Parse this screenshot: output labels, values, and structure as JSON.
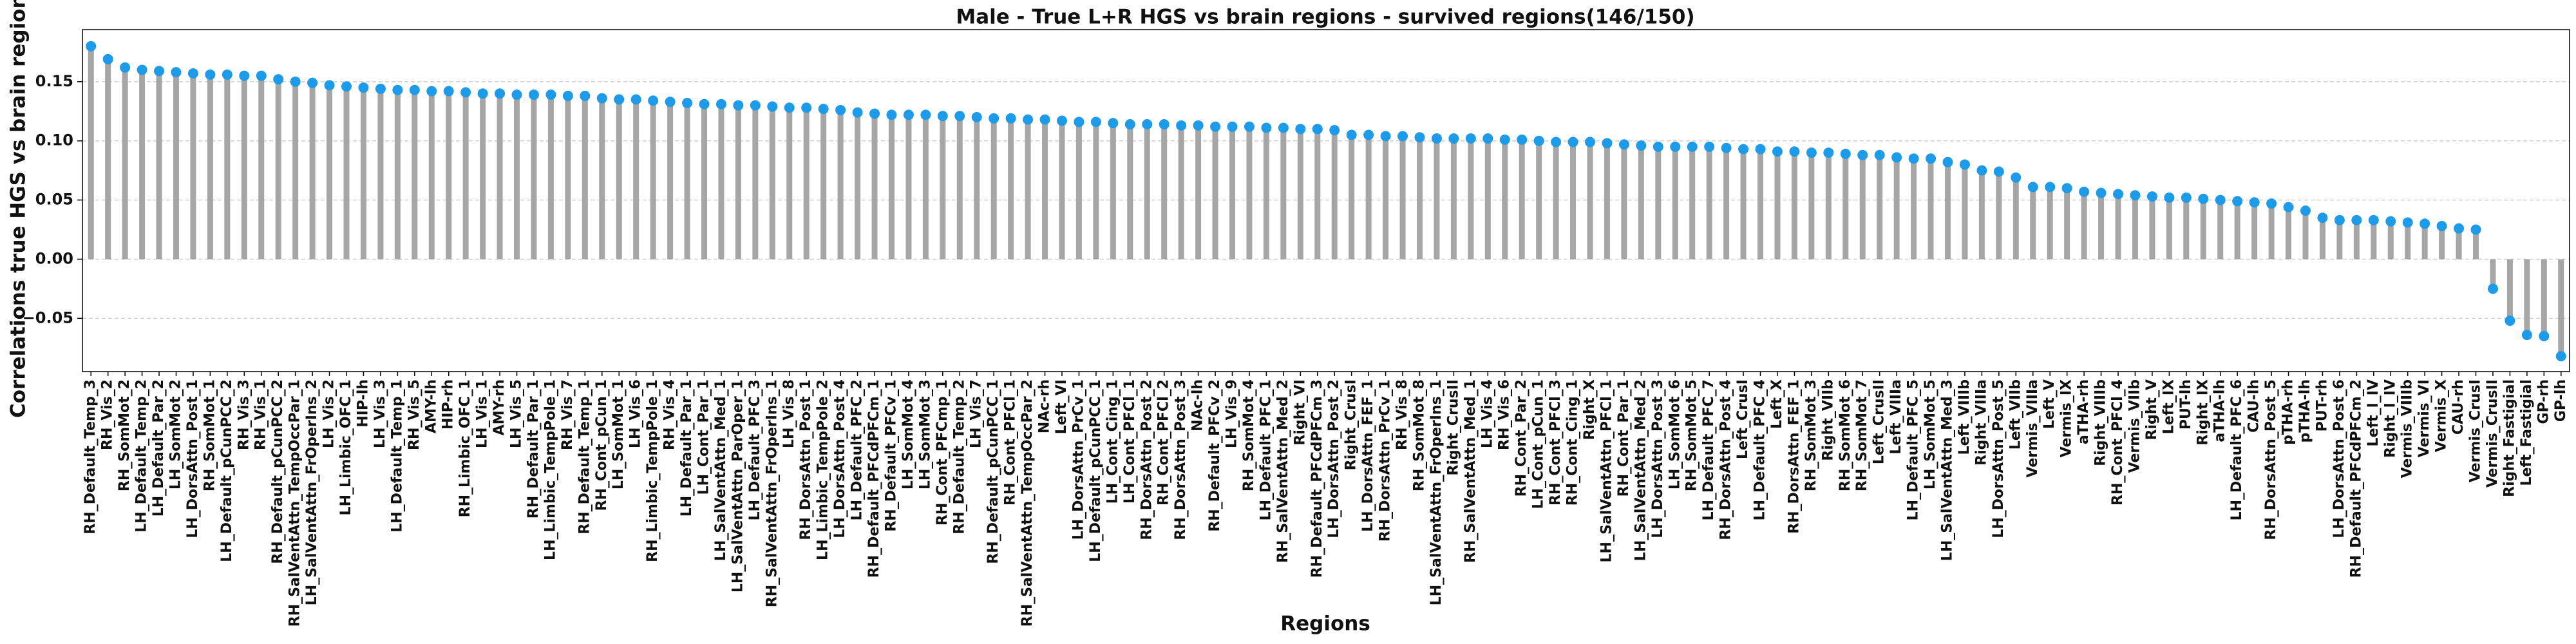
{
  "chart_data": {
    "type": "lollipop",
    "title": "Male - True L+R HGS vs brain regions - survived regions(146/150)",
    "xlabel": "Regions",
    "ylabel": "Correlations true HGS vs brain regions",
    "categories": [
      "RH_Default_Temp_3",
      "RH_Vis_2",
      "RH_SomMot_2",
      "LH_Default_Temp_2",
      "LH_Default_Par_2",
      "LH_SomMot_2",
      "LH_DorsAttn_Post_1",
      "RH_SomMot_1",
      "LH_Default_pCunPCC_2",
      "RH_Vis_3",
      "RH_Vis_1",
      "RH_Default_pCunPCC_2",
      "RH_SalVentAttn_TempOccPar_1",
      "LH_SalVentAttn_FrOperIns_2",
      "LH_Vis_2",
      "LH_Limbic_OFC_1",
      "HIP-lh",
      "LH_Vis_3",
      "LH_Default_Temp_1",
      "RH_Vis_5",
      "AMY-lh",
      "HIP-rh",
      "RH_Limbic_OFC_1",
      "LH_Vis_1",
      "AMY-rh",
      "LH_Vis_5",
      "RH_Default_Par_1",
      "LH_Limbic_TempPole_1",
      "RH_Vis_7",
      "RH_Default_Temp_1",
      "RH_Cont_pCun_1",
      "LH_SomMot_1",
      "LH_Vis_6",
      "RH_Limbic_TempPole_1",
      "RH_Vis_4",
      "LH_Default_Par_1",
      "LH_Cont_Par_1",
      "LH_SalVentAttn_Med_1",
      "LH_SalVentAttn_ParOper_1",
      "LH_Default_PFC_3",
      "RH_SalVentAttn_FrOperIns_1",
      "LH_Vis_8",
      "RH_DorsAttn_Post_1",
      "LH_Limbic_TempPole_2",
      "LH_DorsAttn_Post_4",
      "LH_Default_PFC_2",
      "RH_Default_PFCdPFCm_1",
      "RH_Default_PFCv_1",
      "LH_SomMot_4",
      "LH_SomMot_3",
      "RH_Cont_PFCmp_1",
      "RH_Default_Temp_2",
      "LH_Vis_7",
      "RH_Default_pCunPCC_1",
      "RH_Cont_PFCl_1",
      "RH_SalVentAttn_TempOccPar_2",
      "NAc-rh",
      "Left_VI",
      "LH_DorsAttn_PrCv_1",
      "LH_Default_pCunPCC_1",
      "LH_Cont_Cing_1",
      "LH_Cont_PFCl_1",
      "RH_DorsAttn_Post_2",
      "RH_Cont_PFCl_2",
      "RH_DorsAttn_Post_3",
      "NAc-lh",
      "RH_Default_PFCv_2",
      "LH_Vis_9",
      "RH_SomMot_4",
      "LH_Default_PFC_1",
      "RH_SalVentAttn_Med_2",
      "Right_VI",
      "RH_Default_PFCdPFCm_3",
      "LH_DorsAttn_Post_2",
      "Right_CrusI",
      "LH_DorsAttn_FEF_1",
      "RH_DorsAttn_PrCv_1",
      "RH_Vis_8",
      "RH_SomMot_8",
      "LH_SalVentAttn_FrOperIns_1",
      "Right_CrusII",
      "RH_SalVentAttn_Med_1",
      "LH_Vis_4",
      "RH_Vis_6",
      "RH_Cont_Par_2",
      "LH_Cont_pCun_1",
      "RH_Cont_PFCl_3",
      "RH_Cont_Cing_1",
      "Right_X",
      "LH_SalVentAttn_PFCl_1",
      "RH_Cont_Par_1",
      "LH_SalVentAttn_Med_2",
      "LH_DorsAttn_Post_3",
      "LH_SomMot_6",
      "RH_SomMot_5",
      "LH_Default_PFC_7",
      "RH_DorsAttn_Post_4",
      "Left_CrusI",
      "LH_Default_PFC_4",
      "Left_X",
      "RH_DorsAttn_FEF_1",
      "RH_SomMot_3",
      "Right_VIIb",
      "RH_SomMot_6",
      "RH_SomMot_7",
      "Left_CrusII",
      "Left_VIIIa",
      "LH_Default_PFC_5",
      "LH_SomMot_5",
      "LH_SalVentAttn_Med_3",
      "Left_VIIIb",
      "Right_VIIIa",
      "LH_DorsAttn_Post_5",
      "Left_VIIb",
      "Vermis_VIIIa",
      "Left_V",
      "Vermis_IX",
      "aTHA-rh",
      "Right_VIIIb",
      "RH_Cont_PFCl_4",
      "Vermis_VIIb",
      "Right_V",
      "Left_IX",
      "PUT-lh",
      "Right_IX",
      "aTHA-lh",
      "LH_Default_PFC_6",
      "CAU-lh",
      "RH_DorsAttn_Post_5",
      "pTHA-rh",
      "pTHA-lh",
      "PUT-rh",
      "LH_DorsAttn_Post_6",
      "RH_Default_PFCdPFCm_2",
      "Left_I_IV",
      "Right_I_IV",
      "Vermis_VIIIb",
      "Vermis_VI",
      "Vermis_X",
      "CAU-rh",
      "Vermis_CrusI",
      "Vermis_CrusII",
      "Right_Fastigial",
      "Left_Fastigial",
      "GP-rh",
      "GP-lh"
    ],
    "values": [
      0.18,
      0.169,
      0.162,
      0.16,
      0.159,
      0.158,
      0.157,
      0.156,
      0.156,
      0.155,
      0.155,
      0.152,
      0.15,
      0.149,
      0.147,
      0.146,
      0.145,
      0.144,
      0.143,
      0.143,
      0.142,
      0.142,
      0.141,
      0.14,
      0.14,
      0.139,
      0.139,
      0.139,
      0.138,
      0.138,
      0.136,
      0.135,
      0.135,
      0.134,
      0.133,
      0.132,
      0.131,
      0.131,
      0.13,
      0.13,
      0.129,
      0.128,
      0.128,
      0.127,
      0.126,
      0.124,
      0.123,
      0.122,
      0.122,
      0.122,
      0.121,
      0.121,
      0.12,
      0.119,
      0.119,
      0.118,
      0.118,
      0.117,
      0.116,
      0.116,
      0.115,
      0.114,
      0.114,
      0.114,
      0.113,
      0.113,
      0.112,
      0.112,
      0.112,
      0.111,
      0.111,
      0.11,
      0.11,
      0.109,
      0.105,
      0.105,
      0.104,
      0.104,
      0.103,
      0.102,
      0.102,
      0.102,
      0.102,
      0.101,
      0.101,
      0.1,
      0.099,
      0.099,
      0.099,
      0.098,
      0.097,
      0.096,
      0.095,
      0.095,
      0.095,
      0.095,
      0.094,
      0.093,
      0.093,
      0.091,
      0.091,
      0.09,
      0.09,
      0.089,
      0.088,
      0.088,
      0.086,
      0.085,
      0.085,
      0.082,
      0.08,
      0.075,
      0.074,
      0.069,
      0.061,
      0.061,
      0.06,
      0.057,
      0.056,
      0.055,
      0.054,
      0.053,
      0.052,
      0.052,
      0.051,
      0.05,
      0.049,
      0.048,
      0.047,
      0.044,
      0.041,
      0.035,
      0.033,
      0.033,
      0.033,
      0.032,
      0.031,
      0.03,
      0.028,
      0.026,
      0.025,
      -0.025,
      -0.052,
      -0.064,
      -0.065,
      -0.082
    ],
    "color": "#1e9be8",
    "stem_color": "#a6a6a6",
    "ylim": [
      -0.095,
      0.194
    ],
    "yticks": [
      {
        "value": -0.05,
        "label": "−0.05"
      },
      {
        "value": 0,
        "label": "0.00"
      },
      {
        "value": 0.05,
        "label": "0.05"
      },
      {
        "value": 0.1,
        "label": "0.10"
      },
      {
        "value": 0.15,
        "label": "0.15"
      }
    ],
    "grid": true
  }
}
